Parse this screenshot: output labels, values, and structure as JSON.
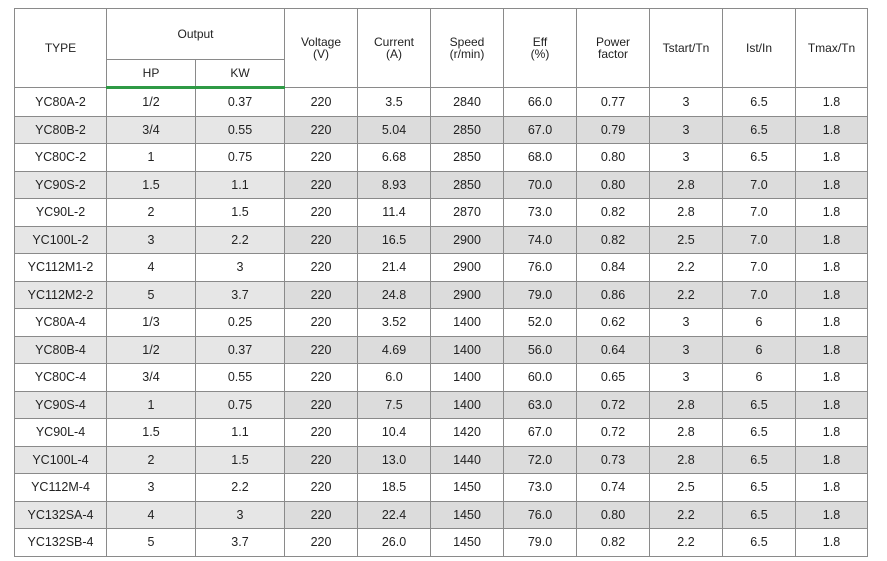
{
  "headers": {
    "type": "TYPE",
    "output": "Output",
    "hp": "HP",
    "kw": "KW",
    "voltage": "Voltage\n(V)",
    "current": "Current\n(A)",
    "speed": "Speed\n(r/min)",
    "eff": "Eff\n(%)",
    "power_factor": "Power\nfactor",
    "tstart": "Tstart/Tn",
    "ist": "Ist/In",
    "tmax": "Tmax/Tn"
  },
  "rows": [
    [
      "YC80A-2",
      "1/2",
      "0.37",
      "220",
      "3.5",
      "2840",
      "66.0",
      "0.77",
      "3",
      "6.5",
      "1.8"
    ],
    [
      "YC80B-2",
      "3/4",
      "0.55",
      "220",
      "5.04",
      "2850",
      "67.0",
      "0.79",
      "3",
      "6.5",
      "1.8"
    ],
    [
      "YC80C-2",
      "1",
      "0.75",
      "220",
      "6.68",
      "2850",
      "68.0",
      "0.80",
      "3",
      "6.5",
      "1.8"
    ],
    [
      "YC90S-2",
      "1.5",
      "1.1",
      "220",
      "8.93",
      "2850",
      "70.0",
      "0.80",
      "2.8",
      "7.0",
      "1.8"
    ],
    [
      "YC90L-2",
      "2",
      "1.5",
      "220",
      "11.4",
      "2870",
      "73.0",
      "0.82",
      "2.8",
      "7.0",
      "1.8"
    ],
    [
      "YC100L-2",
      "3",
      "2.2",
      "220",
      "16.5",
      "2900",
      "74.0",
      "0.82",
      "2.5",
      "7.0",
      "1.8"
    ],
    [
      "YC112M1-2",
      "4",
      "3",
      "220",
      "21.4",
      "2900",
      "76.0",
      "0.84",
      "2.2",
      "7.0",
      "1.8"
    ],
    [
      "YC112M2-2",
      "5",
      "3.7",
      "220",
      "24.8",
      "2900",
      "79.0",
      "0.86",
      "2.2",
      "7.0",
      "1.8"
    ],
    [
      "YC80A-4",
      "1/3",
      "0.25",
      "220",
      "3.52",
      "1400",
      "52.0",
      "0.62",
      "3",
      "6",
      "1.8"
    ],
    [
      "YC80B-4",
      "1/2",
      "0.37",
      "220",
      "4.69",
      "1400",
      "56.0",
      "0.64",
      "3",
      "6",
      "1.8"
    ],
    [
      "YC80C-4",
      "3/4",
      "0.55",
      "220",
      "6.0",
      "1400",
      "60.0",
      "0.65",
      "3",
      "6",
      "1.8"
    ],
    [
      "YC90S-4",
      "1",
      "0.75",
      "220",
      "7.5",
      "1400",
      "63.0",
      "0.72",
      "2.8",
      "6.5",
      "1.8"
    ],
    [
      "YC90L-4",
      "1.5",
      "1.1",
      "220",
      "10.4",
      "1420",
      "67.0",
      "0.72",
      "2.8",
      "6.5",
      "1.8"
    ],
    [
      "YC100L-4",
      "2",
      "1.5",
      "220",
      "13.0",
      "1440",
      "72.0",
      "0.73",
      "2.8",
      "6.5",
      "1.8"
    ],
    [
      "YC112M-4",
      "3",
      "2.2",
      "220",
      "18.5",
      "1450",
      "73.0",
      "0.74",
      "2.5",
      "6.5",
      "1.8"
    ],
    [
      "YC132SA-4",
      "4",
      "3",
      "220",
      "22.4",
      "1450",
      "76.0",
      "0.80",
      "2.2",
      "6.5",
      "1.8"
    ],
    [
      "YC132SB-4",
      "5",
      "3.7",
      "220",
      "26.0",
      "1450",
      "79.0",
      "0.82",
      "2.2",
      "6.5",
      "1.8"
    ]
  ],
  "colors": {
    "header_rule": "#2e9a45",
    "shaded_row": "#dcdcdc",
    "border": "#8a8a8a"
  }
}
